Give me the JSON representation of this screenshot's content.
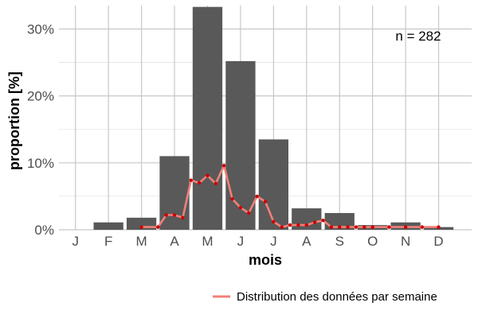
{
  "chart_data": {
    "type": "bar",
    "title": "",
    "xlabel": "mois",
    "ylabel": "proportion [%]",
    "categories": [
      "J",
      "F",
      "M",
      "A",
      "M",
      "J",
      "J",
      "A",
      "S",
      "O",
      "N",
      "D"
    ],
    "ylim": [
      0,
      33.5
    ],
    "yticks": [
      0,
      10,
      20,
      30
    ],
    "ytick_labels": [
      "0%",
      "10%",
      "20%",
      "30%"
    ],
    "grid": true,
    "annotation": "n = 282",
    "legend_position": "bottom-right",
    "colors": {
      "bars": "#595959",
      "line": "#f08078",
      "points": "#cc0000",
      "grid": "#c8c8c8"
    },
    "series": [
      {
        "name": "",
        "type": "bar",
        "values": [
          0,
          1.1,
          1.8,
          11.0,
          33.3,
          25.2,
          13.5,
          3.2,
          2.5,
          0.7,
          1.1,
          0.4
        ]
      },
      {
        "name": "Distribution des données par semaine",
        "type": "line",
        "x": [
          3.0,
          3.5,
          3.75,
          4.0,
          4.25,
          4.5,
          4.75,
          5.0,
          5.25,
          5.5,
          5.75,
          6.0,
          6.25,
          6.5,
          6.75,
          7.0,
          7.25,
          7.5,
          7.75,
          8.0,
          8.25,
          8.5,
          8.75,
          9.0,
          9.25,
          9.5,
          9.75,
          10.0,
          10.5,
          11.0,
          11.5,
          12.0
        ],
        "values": [
          0.4,
          0.4,
          2.2,
          2.2,
          1.8,
          7.4,
          7.0,
          8.1,
          6.9,
          9.6,
          4.6,
          3.3,
          2.5,
          5.0,
          4.2,
          1.2,
          0.4,
          0.7,
          0.7,
          0.7,
          1.1,
          1.4,
          0.4,
          0.4,
          0.4,
          0.4,
          0.4,
          0.4,
          0.4,
          0.4,
          0.4,
          0.4
        ]
      }
    ]
  }
}
